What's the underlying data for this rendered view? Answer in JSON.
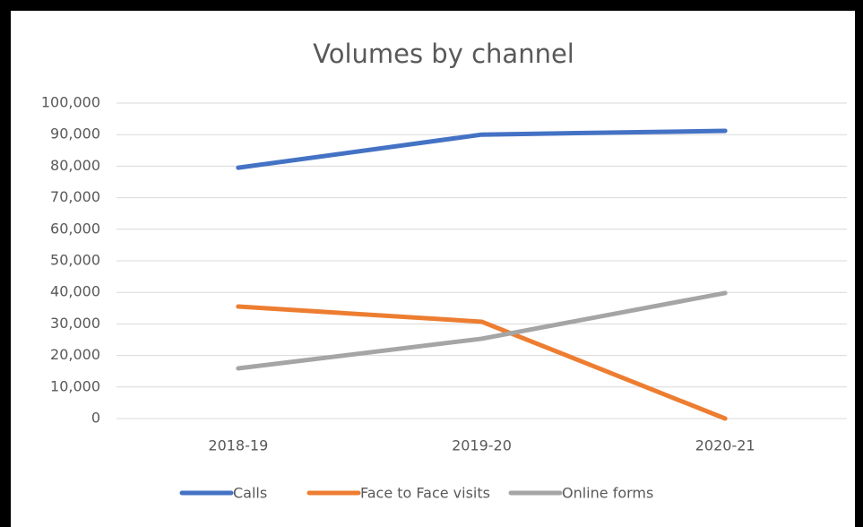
{
  "chart_data": {
    "type": "line",
    "title": "Volumes by channel",
    "categories": [
      "2018-19",
      "2019-20",
      "2020-21"
    ],
    "series": [
      {
        "name": "Calls",
        "color": "#4472c4",
        "values": [
          79500,
          90000,
          91200
        ]
      },
      {
        "name": "Face to Face visits",
        "color": "#ed7d31",
        "values": [
          35500,
          30700,
          0
        ]
      },
      {
        "name": "Online forms",
        "color": "#a5a5a5",
        "values": [
          15900,
          25300,
          39800
        ]
      }
    ],
    "ylim": [
      0,
      100000
    ],
    "yticks": [
      0,
      {
        "value": 10000,
        "label": "10,000"
      },
      {
        "value": 20000,
        "label": "20,000"
      },
      {
        "value": 30000,
        "label": "30,000"
      },
      {
        "value": 40000,
        "label": "40,000"
      },
      {
        "value": 50000,
        "label": "50,000"
      },
      {
        "value": 60000,
        "label": "60,000"
      },
      {
        "value": 70000,
        "label": "70,000"
      },
      {
        "value": 80000,
        "label": "80,000"
      },
      {
        "value": 90000,
        "label": "90,000"
      },
      {
        "value": 100000,
        "label": "100,000"
      }
    ],
    "grid": true,
    "legend": "bottom"
  }
}
